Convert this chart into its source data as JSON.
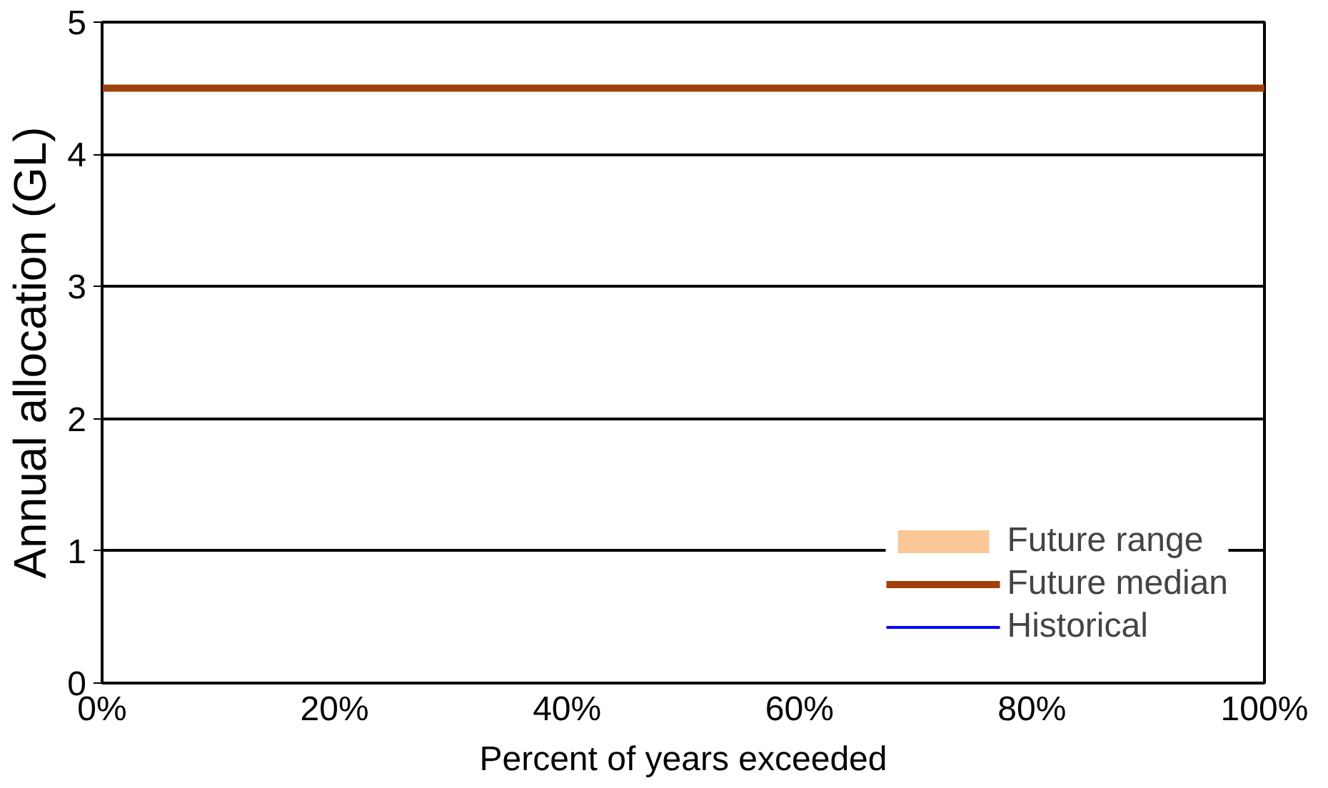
{
  "chart_data": {
    "type": "line",
    "xlabel": "Percent of years exceeded",
    "ylabel": "Annual allocation (GL)",
    "x": [
      0,
      100
    ],
    "series": [
      {
        "name": "Future range",
        "type": "area",
        "color": "#fac796",
        "lower": [
          null,
          null
        ],
        "upper": [
          null,
          null
        ],
        "values": [
          null,
          null
        ]
      },
      {
        "name": "Future median",
        "color": "#a0410d",
        "values": [
          4.5,
          4.5
        ]
      },
      {
        "name": "Historical",
        "color": "#0000ff",
        "values": [
          null,
          null
        ]
      }
    ],
    "xlim": [
      0,
      100
    ],
    "xticks": [
      {
        "value": 0,
        "label": "0%"
      },
      {
        "value": 20,
        "label": "20%"
      },
      {
        "value": 40,
        "label": "40%"
      },
      {
        "value": 60,
        "label": "60%"
      },
      {
        "value": 80,
        "label": "80%"
      },
      {
        "value": 100,
        "label": "100%"
      }
    ],
    "ylim": [
      0,
      5
    ],
    "yticks": [
      0,
      1,
      2,
      3,
      4,
      5
    ],
    "grid": "y",
    "legend": "bottom right",
    "marker": "none",
    "line_style": "solid"
  }
}
